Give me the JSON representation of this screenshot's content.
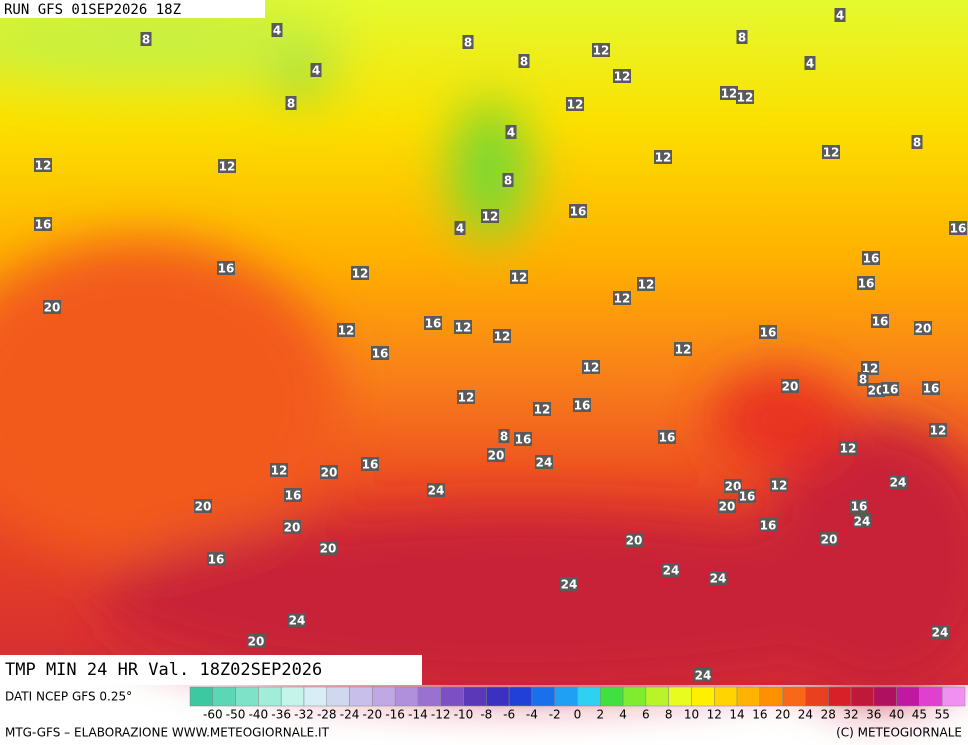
{
  "header": {
    "run": "RUN GFS 01SEP2026 18Z"
  },
  "map_labels": [
    8,
    4,
    8,
    12,
    8,
    4,
    4,
    8,
    4,
    12,
    8,
    12,
    12,
    12,
    4,
    8,
    12,
    12,
    12,
    12,
    8,
    16,
    12,
    4,
    16,
    16,
    16,
    12,
    12,
    12,
    16,
    16,
    12,
    20,
    16,
    12,
    12,
    12,
    16,
    16,
    20,
    16,
    12,
    12,
    12,
    8,
    20,
    20,
    16,
    16,
    12,
    12,
    16,
    12,
    8,
    16,
    16,
    12,
    20,
    24,
    16,
    12,
    20,
    24,
    24,
    20,
    16,
    12,
    16,
    20,
    20,
    16,
    24,
    20,
    16,
    20,
    20,
    20,
    16,
    24,
    24,
    24,
    24,
    20,
    24,
    24
  ],
  "footer": {
    "title": "TMP MIN 24 HR Val. 18Z02SEP2026",
    "source": "DATI NCEP GFS 0.25°",
    "credit": "MTG-GFS – ELABORAZIONE WWW.METEOGIORNALE.IT",
    "copyright": "(C) METEOGIORNALE"
  },
  "legend": {
    "ticks": [
      -60,
      -50,
      -40,
      -36,
      -32,
      -28,
      -24,
      -20,
      -16,
      -14,
      -12,
      -10,
      -8,
      -6,
      -4,
      -2,
      0,
      2,
      4,
      6,
      8,
      10,
      12,
      14,
      16,
      20,
      24,
      28,
      32,
      36,
      40,
      45,
      55
    ],
    "colors": [
      "#3cc8a0",
      "#5cd6b4",
      "#7ee2c8",
      "#a2ecda",
      "#c4f4ea",
      "#d8eef6",
      "#d0d8f0",
      "#c8c0ea",
      "#c0a8e4",
      "#b090dc",
      "#9a70d0",
      "#7c50c4",
      "#5a38b8",
      "#3c30c0",
      "#2040d8",
      "#1870ec",
      "#20a0f4",
      "#30d0f0",
      "#40e040",
      "#80ec30",
      "#b8f428",
      "#e8fc20",
      "#fff000",
      "#ffd400",
      "#ffb400",
      "#ff9000",
      "#f86818",
      "#e84020",
      "#d82028",
      "#c01838",
      "#b01060",
      "#c018a0",
      "#e040d0",
      "#f090f0"
    ]
  }
}
